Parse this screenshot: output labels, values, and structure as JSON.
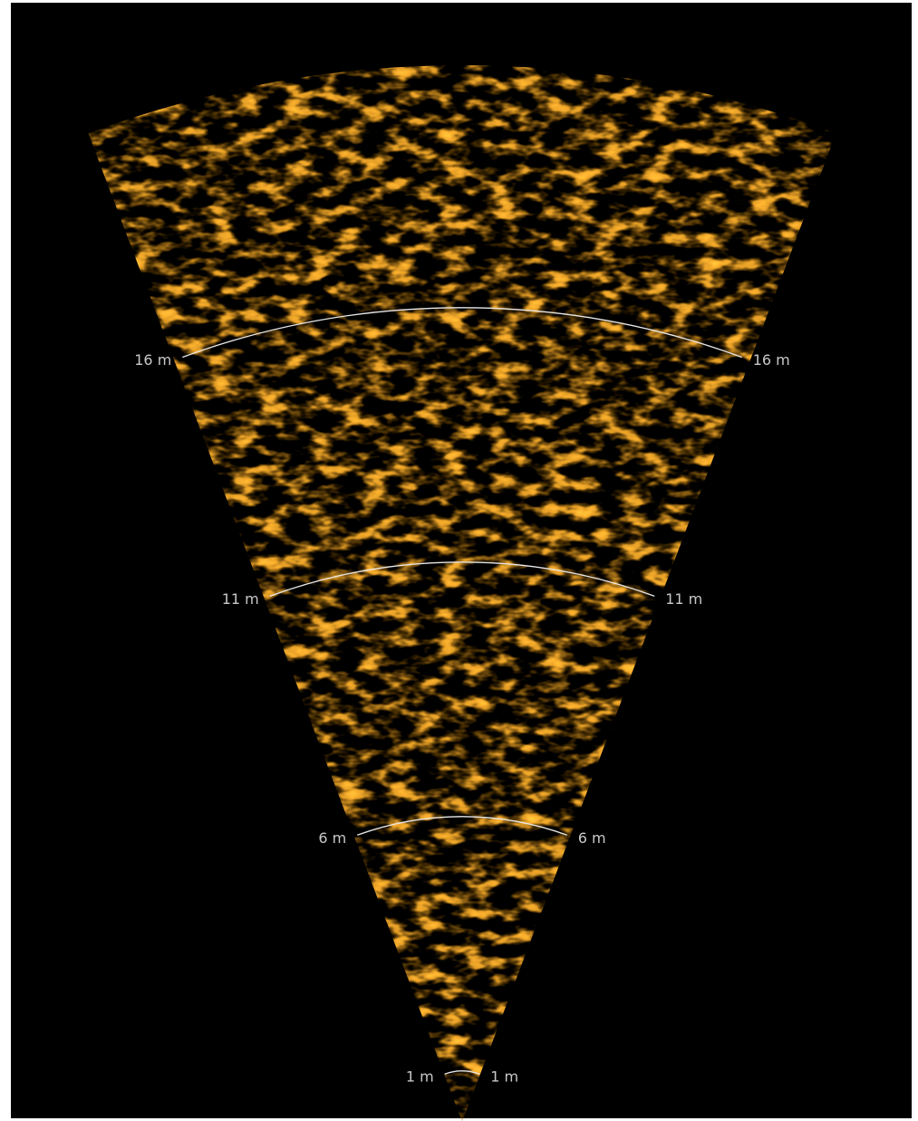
{
  "range_rings": [
    {
      "value": 1,
      "label": "1 m"
    },
    {
      "value": 6,
      "label": "6 m"
    },
    {
      "value": 11,
      "label": "11 m"
    },
    {
      "value": 16,
      "label": "16 m"
    }
  ]
}
